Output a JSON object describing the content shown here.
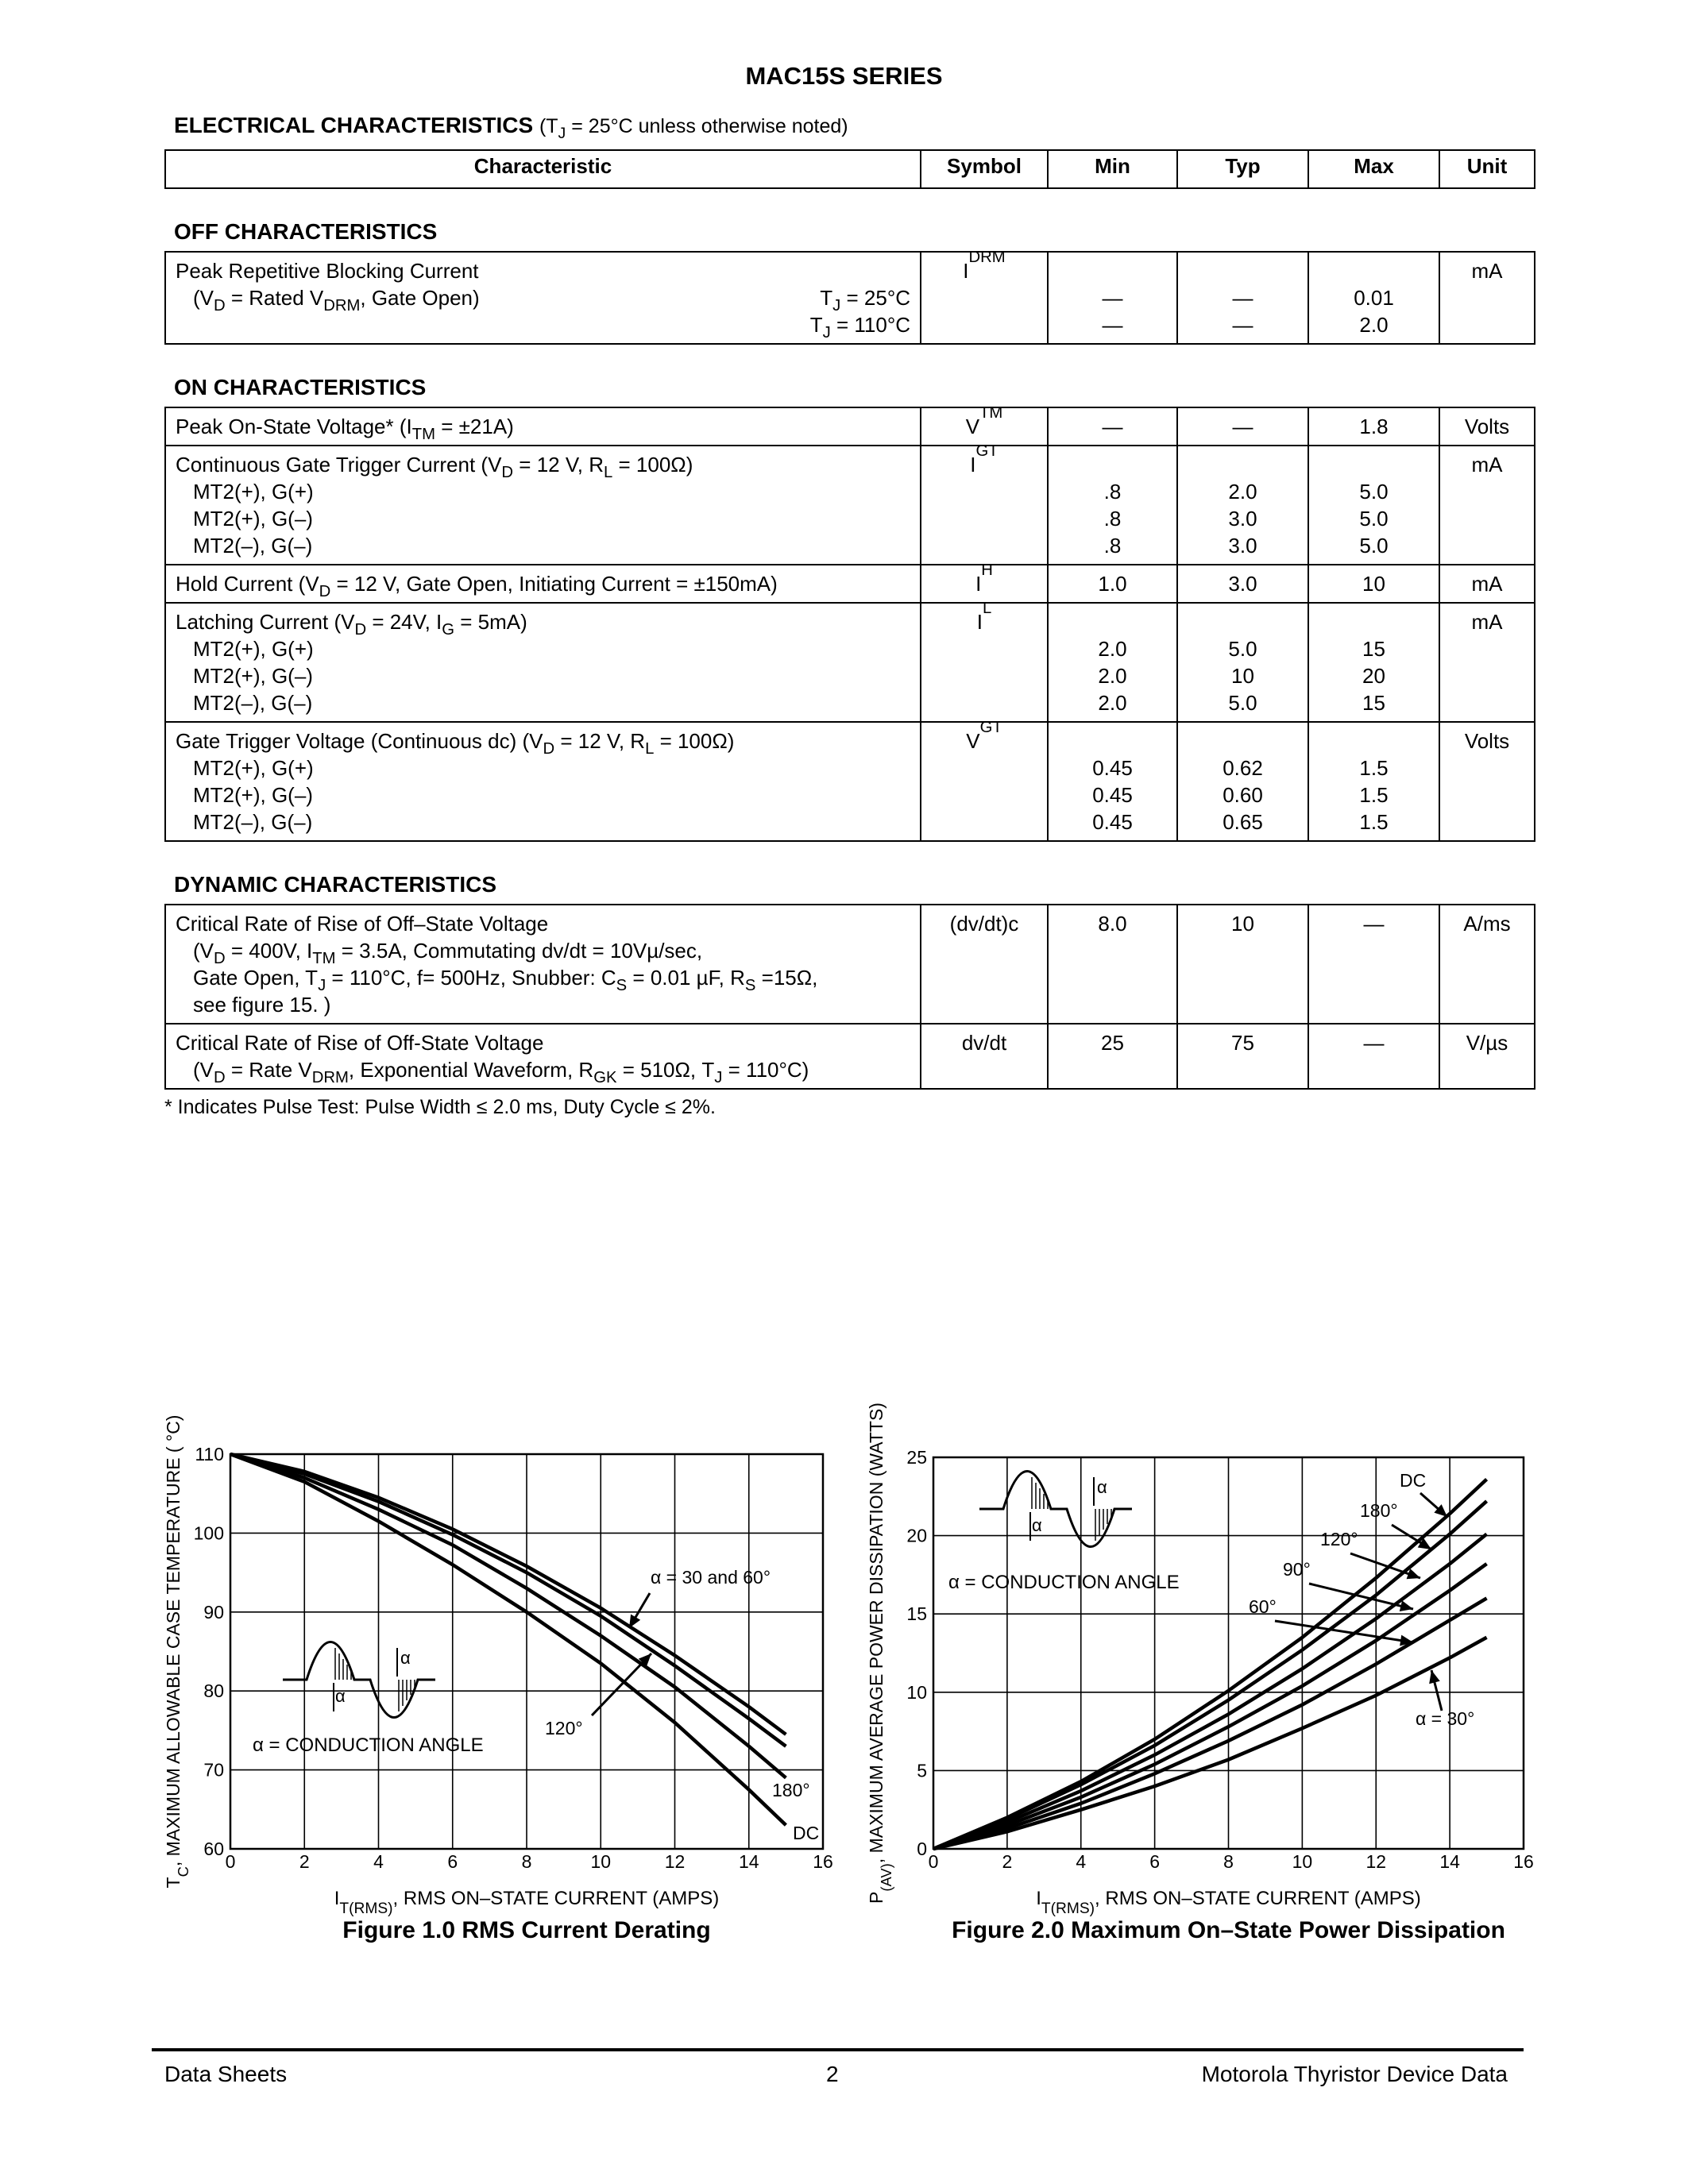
{
  "header": {
    "title": "MAC15S SERIES"
  },
  "table": {
    "heading": {
      "title": "ELECTRICAL CHARACTERISTICS",
      "note": [
        "(T",
        "J",
        " = 25°C unless otherwise noted)"
      ]
    },
    "columns": [
      "Characteristic",
      "Symbol",
      "Min",
      "Typ",
      "Max",
      "Unit"
    ],
    "sections": [
      {
        "title": "OFF CHARACTERISTICS",
        "rows": [
          {
            "lines": [
              [
                "Peak Repetitive Blocking Current"
              ],
              [
                "(V",
                "D",
                " = Rated V",
                "DRM",
                ", Gate Open)"
              ],
              null
            ],
            "conditions": [
              null,
              [
                "T",
                "J",
                " = 25°C"
              ],
              [
                "T",
                "J",
                " = 110°C"
              ]
            ],
            "symbol": [
              "I",
              "DRM"
            ],
            "min": [
              null,
              "—",
              "—"
            ],
            "typ": [
              null,
              "—",
              "—"
            ],
            "max": [
              null,
              "0.01",
              "2.0"
            ],
            "unit": "mA"
          }
        ]
      },
      {
        "title": "ON CHARACTERISTICS",
        "rows": [
          {
            "lines": [
              [
                "Peak On-State Voltage* (I",
                "TM",
                " = ±21A)"
              ]
            ],
            "symbol": [
              "V",
              "TM"
            ],
            "min": [
              "—"
            ],
            "typ": [
              "—"
            ],
            "max": [
              "1.8"
            ],
            "unit": "Volts"
          },
          {
            "lines": [
              [
                "Continuous Gate Trigger Current (V",
                "D",
                " = 12 V, R",
                "L",
                " = 100Ω)"
              ],
              [
                "MT2(+), G(+)"
              ],
              [
                "MT2(+), G(–)"
              ],
              [
                "MT2(–), G(–)"
              ]
            ],
            "symbol": [
              "I",
              "GT"
            ],
            "min": [
              null,
              ".8",
              ".8",
              ".8"
            ],
            "typ": [
              null,
              "2.0",
              "3.0",
              "3.0"
            ],
            "max": [
              null,
              "5.0",
              "5.0",
              "5.0"
            ],
            "unit": "mA"
          },
          {
            "lines": [
              [
                "Hold Current (V",
                "D",
                " = 12 V, Gate Open, Initiating Current = ±150mA)"
              ]
            ],
            "symbol": [
              "I",
              "H"
            ],
            "min": [
              "1.0"
            ],
            "typ": [
              "3.0"
            ],
            "max": [
              "10"
            ],
            "unit": "mA"
          },
          {
            "lines": [
              [
                "Latching Current (V",
                "D",
                " = 24V, I",
                "G",
                " = 5mA)"
              ],
              [
                "MT2(+), G(+)"
              ],
              [
                "MT2(+), G(–)"
              ],
              [
                "MT2(–), G(–)"
              ]
            ],
            "symbol": [
              "I",
              "L"
            ],
            "min": [
              null,
              "2.0",
              "2.0",
              "2.0"
            ],
            "typ": [
              null,
              "5.0",
              "10",
              "5.0"
            ],
            "max": [
              null,
              "15",
              "20",
              "15"
            ],
            "unit": "mA"
          },
          {
            "lines": [
              [
                "Gate Trigger Voltage (Continuous dc) (V",
                "D",
                " = 12 V, R",
                "L",
                " = 100Ω)"
              ],
              [
                "MT2(+), G(+)"
              ],
              [
                "MT2(+), G(–)"
              ],
              [
                "MT2(–), G(–)"
              ]
            ],
            "symbol": [
              "V",
              "GT"
            ],
            "min": [
              null,
              "0.45",
              "0.45",
              "0.45"
            ],
            "typ": [
              null,
              "0.62",
              "0.60",
              "0.65"
            ],
            "max": [
              null,
              "1.5",
              "1.5",
              "1.5"
            ],
            "unit": "Volts"
          }
        ]
      },
      {
        "title": "DYNAMIC CHARACTERISTICS",
        "rows": [
          {
            "lines": [
              [
                "Critical Rate of Rise of Off–State Voltage"
              ],
              [
                "(V",
                "D",
                " = 400V, I",
                "TM",
                " = 3.5A, Commutating dv/dt = 10Vµ/sec,"
              ],
              [
                "Gate Open, T",
                "J",
                " = 110°C, f= 500Hz, Snubber: C",
                "S",
                " = 0.01 µF, R",
                "S",
                " =15Ω,"
              ],
              [
                "see figure 15. )"
              ]
            ],
            "symbol": [
              "(dv/dt)c"
            ],
            "min": [
              "8.0"
            ],
            "typ": [
              "10"
            ],
            "max": [
              "—"
            ],
            "unit": "A/ms"
          },
          {
            "lines": [
              [
                "Critical Rate of Rise of Off-State Voltage"
              ],
              [
                "(V",
                "D",
                " = Rate V",
                "DRM",
                ", Exponential Waveform, R",
                "GK",
                " = 510Ω, T",
                "J",
                " = 110°C)"
              ]
            ],
            "symbol": [
              "dv/dt"
            ],
            "min": [
              "25"
            ],
            "typ": [
              "75"
            ],
            "max": [
              "—"
            ],
            "unit": "V/µs"
          }
        ]
      }
    ]
  },
  "footnote": "* Indicates Pulse Test: Pulse Width ≤ 2.0 ms, Duty Cycle ≤ 2%.",
  "chart_data": [
    {
      "type": "line",
      "caption": "Figure 1.0  RMS Current Derating",
      "x_label": [
        "I",
        "T(RMS)",
        ", RMS ON–STATE CURRENT (AMPS)"
      ],
      "y_label": [
        "T",
        "C",
        ", MAXIMUM ALLOWABLE CASE TEMPERATURE ( °C)"
      ],
      "annotation": "α = CONDUCTION ANGLE",
      "icon_label": "α",
      "x": [
        0,
        2,
        4,
        6,
        8,
        10,
        12,
        14,
        15
      ],
      "series": [
        {
          "name": "α = 30 and 60°",
          "color": "#000000",
          "values": [
            110,
            107.8,
            104.5,
            100.5,
            95.8,
            90.5,
            84.5,
            78,
            74.5
          ]
        },
        {
          "name": "120°",
          "color": "#000000",
          "values": [
            110,
            107.5,
            104,
            99.8,
            95,
            89.5,
            83.2,
            76.5,
            73
          ]
        },
        {
          "name": "180°",
          "color": "#000000",
          "values": [
            110,
            107,
            103,
            98.5,
            93,
            87,
            80.5,
            73,
            69
          ]
        },
        {
          "name": "DC",
          "color": "#000000",
          "values": [
            110,
            106.5,
            101.5,
            96,
            90,
            83.5,
            76,
            67.5,
            63
          ]
        }
      ],
      "xlim": [
        0,
        16
      ],
      "xticks": [
        0,
        2,
        4,
        6,
        8,
        10,
        12,
        14,
        16
      ],
      "ylim": [
        60,
        110
      ],
      "yticks": [
        60,
        70,
        80,
        90,
        100,
        110
      ],
      "grid": true
    },
    {
      "type": "line",
      "caption": "Figure 2.0  Maximum On–State Power Dissipation",
      "x_label": [
        "I",
        "T(RMS)",
        ", RMS ON–STATE CURRENT (AMPS)"
      ],
      "y_label": [
        "P",
        "(AV)",
        ", MAXIMUM AVERAGE POWER DISSIPATION (WATTS)"
      ],
      "annotation": "α = CONDUCTION ANGLE",
      "icon_label": "α",
      "x": [
        0,
        2,
        4,
        6,
        8,
        10,
        12,
        14,
        15
      ],
      "series": [
        {
          "name": "DC",
          "color": "#000000",
          "values": [
            0,
            2.0,
            4.3,
            7.0,
            10.1,
            13.5,
            17.3,
            21.4,
            23.6
          ]
        },
        {
          "name": "180°",
          "color": "#000000",
          "values": [
            0,
            1.9,
            4.1,
            6.6,
            9.5,
            12.7,
            16.2,
            20.1,
            22.2
          ]
        },
        {
          "name": "120°",
          "color": "#000000",
          "values": [
            0,
            1.7,
            3.7,
            6.0,
            8.6,
            11.5,
            14.7,
            18.2,
            20.1
          ]
        },
        {
          "name": "90°",
          "color": "#000000",
          "values": [
            0,
            1.5,
            3.3,
            5.4,
            7.8,
            10.4,
            13.3,
            16.5,
            18.2
          ]
        },
        {
          "name": "60°",
          "color": "#000000",
          "values": [
            0,
            1.3,
            2.9,
            4.8,
            6.9,
            9.2,
            11.8,
            14.6,
            16.0
          ]
        },
        {
          "name": "α = 30°",
          "color": "#000000",
          "values": [
            0,
            1.1,
            2.5,
            4.0,
            5.7,
            7.7,
            9.8,
            12.2,
            13.5
          ]
        }
      ],
      "xlim": [
        0,
        16
      ],
      "xticks": [
        0,
        2,
        4,
        6,
        8,
        10,
        12,
        14,
        16
      ],
      "ylim": [
        0,
        25
      ],
      "yticks": [
        0,
        5,
        10,
        15,
        20,
        25
      ],
      "grid": true
    }
  ],
  "footer": {
    "left": "Data Sheets",
    "center": "2",
    "right": "Motorola Thyristor Device Data"
  }
}
